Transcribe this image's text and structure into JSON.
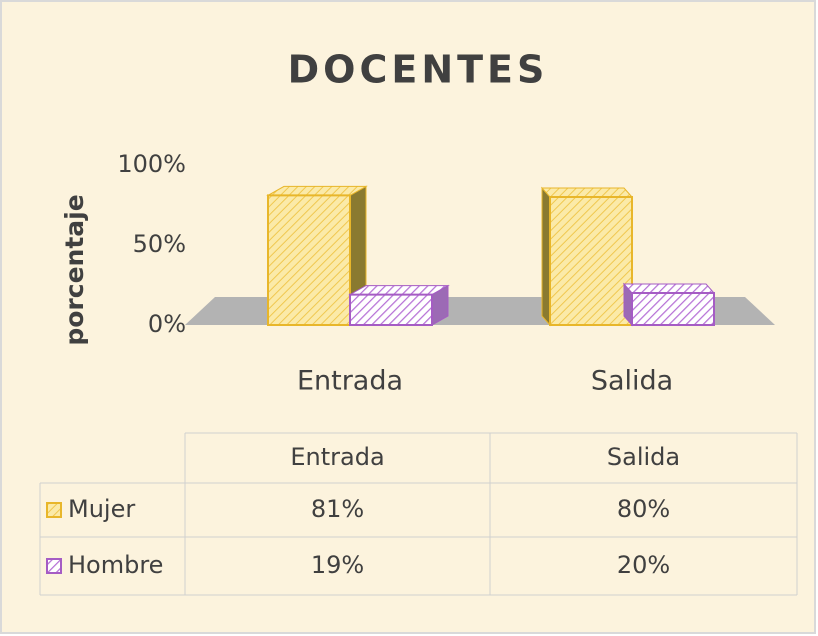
{
  "chart_data": {
    "type": "bar3d",
    "title": "DOCENTES",
    "y_label": "porcentaje",
    "categories": [
      "Entrada",
      "Salida"
    ],
    "series": [
      {
        "name": "Mujer",
        "color": "#f7d96a",
        "edge": "#e8b62a",
        "values": [
          81,
          80
        ],
        "value_labels": [
          "81%",
          "80%"
        ]
      },
      {
        "name": "Hombre",
        "color": "#c98ee0",
        "edge": "#a55cc4",
        "values": [
          19,
          20
        ],
        "value_labels": [
          "19%",
          "20%"
        ]
      }
    ],
    "ylim": [
      0,
      100
    ],
    "yticks": [
      {
        "value": 0,
        "label": "0%"
      },
      {
        "value": 50,
        "label": "50%"
      },
      {
        "value": 100,
        "label": "100%"
      }
    ],
    "floor_color": "#b3b3b3",
    "grid": false
  }
}
